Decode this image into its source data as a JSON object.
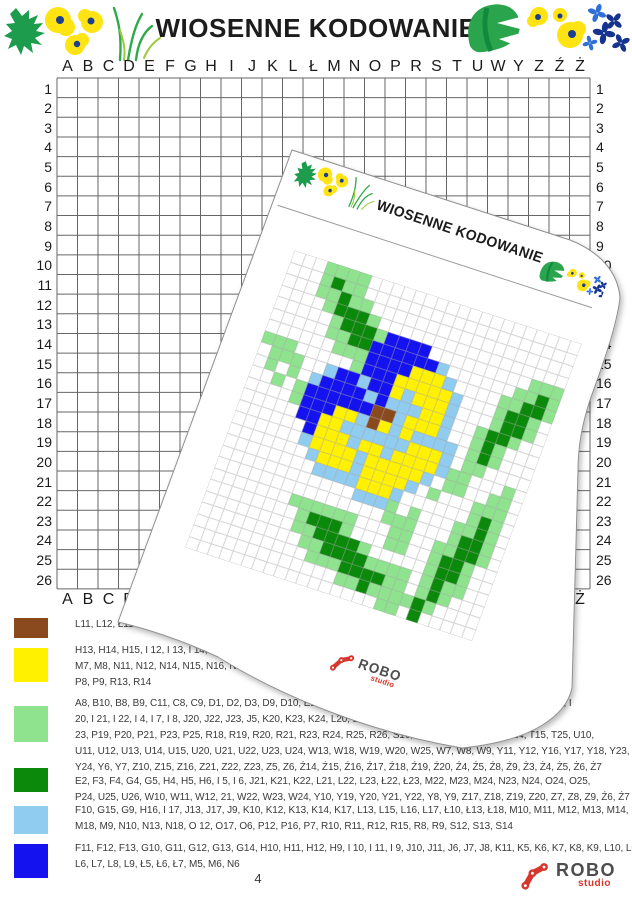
{
  "page": {
    "title": "WIOSENNE KODOWANIE",
    "page_number": "4",
    "brand": {
      "name": "ROBO",
      "sub": "studio"
    },
    "decorations": [
      "sketch-leaf-icon",
      "yellow-flowers-icon",
      "grass-blades-icon",
      "monstera-leaf-icon",
      "yellow-flowers-icon",
      "blue-flowers-icon"
    ]
  },
  "grid": {
    "columns": [
      "A",
      "B",
      "C",
      "D",
      "E",
      "F",
      "G",
      "H",
      "I",
      "J",
      "K",
      "L",
      "Ł",
      "M",
      "N",
      "O",
      "P",
      "R",
      "S",
      "T",
      "U",
      "W",
      "Y",
      "Z",
      "Ź",
      "Ż"
    ],
    "row_numbers": [
      1,
      2,
      3,
      4,
      5,
      6,
      7,
      8,
      9,
      10,
      11,
      12,
      13,
      14,
      15,
      16,
      17,
      18,
      19,
      20,
      21,
      22,
      23,
      24,
      25,
      26
    ]
  },
  "overlay": {
    "title": "WIOSENNE KODOWANIE",
    "brand": {
      "name": "ROBO",
      "sub": "studio"
    },
    "palette": {
      ".": "#ffffff",
      "g": "#8fe38f",
      "G": "#0b890b",
      "Y": "#fff100",
      "b": "#90cbf0",
      "B": "#1413ef",
      "n": "#8a4a1e"
    },
    "art": [
      "...gggg...................",
      "...gGgg...................",
      "...ggGgg..................",
      "....gGGGg.................",
      ".....gGGGgBBBB.........ggg",
      ".....ggGGBBBBBBb......ggGg",
      "......gggBBBBYYYb....ggGGg",
      "ggg.....gBBBYYYYYb...gGGg.",
      ".ggg..bBBbBBYbYYYb...gGGg.",
      ".g.g.bBBBBbBbbbYYb..gGGg..",
      "..g.gBBBBBBnnbYYYb..gGg...",
      "....gBBBYYbnYbYbbbb.gGg...",
      ".....BBYYbbbbbbYYYb.gg....",
      "......BYYYbYYbYYYYbgg...g.",
      "......bYYYYbYYYYYb.gg..gg.",
      ".......bYYYbYYYYb.g...ggg.",
      "........bbbbYYYb......gGg.",
      "............bbbg.g...ggGg.",
      "...............ggg...gGGg.",
      ".......gggggg...gg..ggGGg.",
      "........gGGGg...gg..gGGg..",
      "........ggGGGGg.....gGGg..",
      ".........ggGGGGgggg.gGgg..",
      "..........gggGGGGgg.gGg...",
      ".............ggGggggGg....",
      ".................gg.G....."
    ]
  },
  "legend": [
    {
      "name": "brown",
      "color": "#8a4a1e",
      "lines": [
        "L11, L12, Ł11"
      ]
    },
    {
      "name": "yellow",
      "color": "#fff100",
      "lines": [
        "H13, H14, H15, I 12, I 13, I 14, I 15, J12, J14, J15, K15, K16, L14, Ł12, Ł14, Ł8, Ł9, M15, M16, M17,",
        "M7, M8, N11, N12, N14, N15, N16, N17, N7, N8, O 13, O 14, O 15, O 16, O 7, O 8, O 9, P10, P11, P13, P14, P15,",
        "P8, P9, R13, R14"
      ]
    },
    {
      "name": "light-green",
      "color": "#8fe38f",
      "lines": [
        "A8, B10, B8, B9, C11, C8, C9, D1, D2, D3, D9, D10, E1, E11, E12, E3, F1, F2, G1, G2, G3, G6, G7, H20, H3, H7, I",
        "20, I 21, I 22, I 4, I 7, I 8, J20, J22, J23, J5, K20, K23, K24, L20, L24, Ł21, Ł24, M25, N22, N25, O 18, O 19, O",
        "23, P19, P20, P21, P23, P25, R18, R19, R20, R21, R23, R24, R25, R26, S16, S23, S24, S25, S26, T14, T15, T25, U10,",
        "U11, U12, U13, U14, U15, U20, U21, U22, U23, U24, W13, W18, W19, W20, W25, W7, W8, W9, Y11, Y12, Y16, Y17, Y18, Y23,",
        "Y24, Y6, Y7, Z10, Z15, Z16, Z21, Z22, Z23, Z5, Z6, Ź14, Ź15, Ź16, Ź17, Ź18, Ź19, Ź20, Ź4, Ź5, Ź8, Ź9, Ż3, Ż4, Ż5, Ż6, Ż7"
      ]
    },
    {
      "name": "dark-green",
      "color": "#0b890b",
      "lines": [
        "E2, F3, F4, G4, G5, H4, H5, H6, I 5, I 6, J21, K21, K22, L21, L22, L23, Ł22, Ł23, M22, M23, M24, N23, N24, O24, O25,",
        "P24, U25, U26, W10, W11, W12, 21, W22, W23, W24, Y10, Y19, Y20, Y21, Y22, Y8, Y9, Z17, Z18, Z19, Z20, Z7, Z8, Z9, Ź6, Ź7"
      ]
    },
    {
      "name": "light-blue",
      "color": "#90cbf0",
      "lines": [
        "F10, G15, G9, H16, I 17, J13, J17, J9, K10, K12, K13, K14, K17, L13, L15, L16, L17, Ł10, Ł13, Ł18, M10, M11, M12, M13, M14,",
        "M18, M9, N10, N13, N18, O 12, O17, O6, P12, P16, P7, R10, R11, R12, R15, R8, R9, S12, S13, S14"
      ]
    },
    {
      "name": "blue",
      "color": "#1413ef",
      "lines": [
        "F11, F12, F13, G10, G11, G12, G13, G14, H10, H11, H12, H9, I 10, I 11, I 9, J10, J11, J6, J7, J8, K11, K5, K6, K7, K8, K9, L10, L5,",
        "L6, L7, L8, L9, Ł5, Ł6, Ł7, M5, M6, N6"
      ]
    }
  ]
}
